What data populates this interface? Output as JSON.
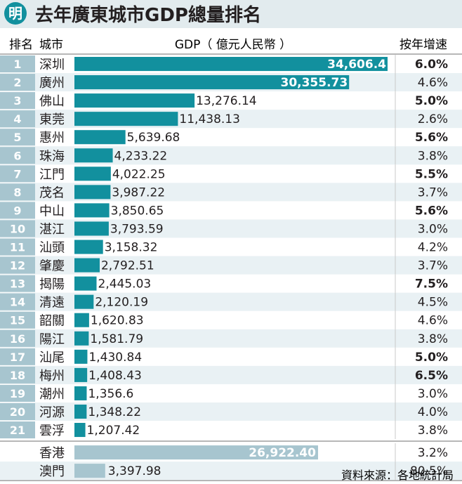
{
  "header": {
    "logo": "明",
    "title": "去年廣東城市GDP總量排名"
  },
  "columns": {
    "rank": "排名",
    "city": "城市",
    "gdp": "GDP（ 億元人民幣 ）",
    "growth": "按年增速"
  },
  "source": "資料來源：各地統計局",
  "colors": {
    "bar": "#12909e",
    "bar_hk_macau": "#a7c5cf",
    "rank_bg": "#a7c5cf",
    "row_stripe": "#e9f1f4",
    "text": "#231f20",
    "title_bg": "#e2ebee"
  },
  "chart_data": {
    "type": "bar",
    "orientation": "horizontal",
    "title": "去年廣東城市GDP總量排名",
    "xlabel": "GDP（ 億元人民幣 ）",
    "ylabel": "",
    "xlim": [
      0,
      34606.4
    ],
    "rows": [
      {
        "rank": "1",
        "city": "深圳",
        "gdp": 34606.4,
        "gdp_label": "34,606.4",
        "growth": "6.0%",
        "bold": true
      },
      {
        "rank": "2",
        "city": "廣州",
        "gdp": 30355.73,
        "gdp_label": "30,355.73",
        "growth": "4.6%",
        "bold": false
      },
      {
        "rank": "3",
        "city": "佛山",
        "gdp": 13276.14,
        "gdp_label": "13,276.14",
        "growth": "5.0%",
        "bold": true
      },
      {
        "rank": "4",
        "city": "東莞",
        "gdp": 11438.13,
        "gdp_label": "11,438.13",
        "growth": "2.6%",
        "bold": false
      },
      {
        "rank": "5",
        "city": "惠州",
        "gdp": 5639.68,
        "gdp_label": "5,639.68",
        "growth": "5.6%",
        "bold": true
      },
      {
        "rank": "6",
        "city": "珠海",
        "gdp": 4233.22,
        "gdp_label": "4,233.22",
        "growth": "3.8%",
        "bold": false
      },
      {
        "rank": "7",
        "city": "江門",
        "gdp": 4022.25,
        "gdp_label": "4,022.25",
        "growth": "5.5%",
        "bold": true
      },
      {
        "rank": "8",
        "city": "茂名",
        "gdp": 3987.22,
        "gdp_label": "3,987.22",
        "growth": "3.7%",
        "bold": false
      },
      {
        "rank": "9",
        "city": "中山",
        "gdp": 3850.65,
        "gdp_label": "3,850.65",
        "growth": "5.6%",
        "bold": true
      },
      {
        "rank": "10",
        "city": "湛江",
        "gdp": 3793.59,
        "gdp_label": "3,793.59",
        "growth": "3.0%",
        "bold": false
      },
      {
        "rank": "11",
        "city": "汕頭",
        "gdp": 3158.32,
        "gdp_label": "3,158.32",
        "growth": "4.2%",
        "bold": false
      },
      {
        "rank": "12",
        "city": "肇慶",
        "gdp": 2792.51,
        "gdp_label": "2,792.51",
        "growth": "3.7%",
        "bold": false
      },
      {
        "rank": "13",
        "city": "揭陽",
        "gdp": 2445.03,
        "gdp_label": "2,445.03",
        "growth": "7.5%",
        "bold": true
      },
      {
        "rank": "14",
        "city": "清遠",
        "gdp": 2120.19,
        "gdp_label": "2,120.19",
        "growth": "4.5%",
        "bold": false
      },
      {
        "rank": "15",
        "city": "韶關",
        "gdp": 1620.83,
        "gdp_label": "1,620.83",
        "growth": "4.6%",
        "bold": false
      },
      {
        "rank": "16",
        "city": "陽江",
        "gdp": 1581.79,
        "gdp_label": "1,581.79",
        "growth": "3.8%",
        "bold": false
      },
      {
        "rank": "17",
        "city": "汕尾",
        "gdp": 1430.84,
        "gdp_label": "1,430.84",
        "growth": "5.0%",
        "bold": true
      },
      {
        "rank": "18",
        "city": "梅州",
        "gdp": 1408.43,
        "gdp_label": "1,408.43",
        "growth": "6.5%",
        "bold": true
      },
      {
        "rank": "19",
        "city": "潮州",
        "gdp": 1356.6,
        "gdp_label": "1,356.6",
        "growth": "3.0%",
        "bold": false
      },
      {
        "rank": "20",
        "city": "河源",
        "gdp": 1348.22,
        "gdp_label": "1,348.22",
        "growth": "4.0%",
        "bold": false
      },
      {
        "rank": "21",
        "city": "雲浮",
        "gdp": 1207.42,
        "gdp_label": "1,207.42",
        "growth": "3.8%",
        "bold": false
      }
    ],
    "extra_rows": [
      {
        "city": "香港",
        "gdp": 26922.4,
        "gdp_label": "26,922.40",
        "growth": "3.2%"
      },
      {
        "city": "澳門",
        "gdp": 3397.98,
        "gdp_label": "3,397.98",
        "growth": "80.5%"
      }
    ]
  }
}
